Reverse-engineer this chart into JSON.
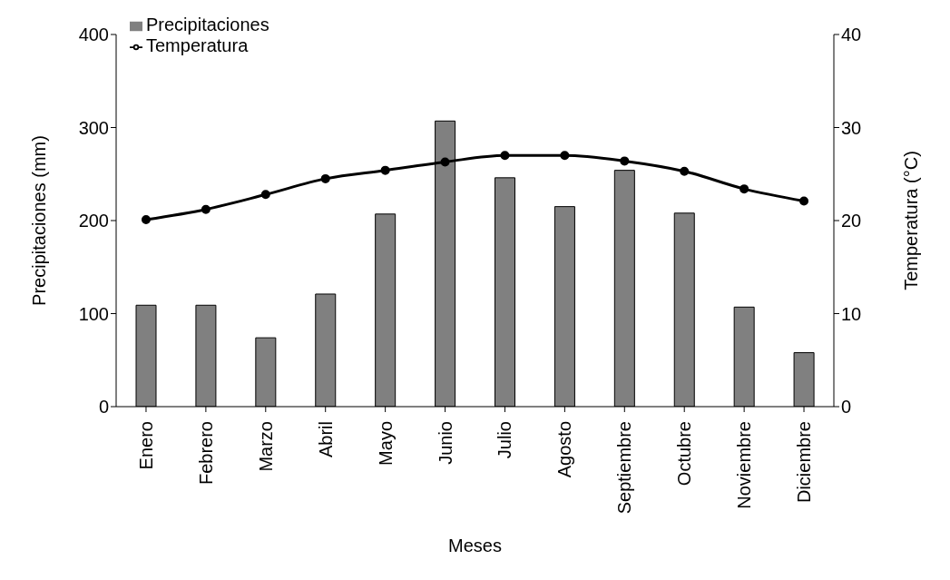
{
  "chart_data": {
    "type": "bar",
    "xlabel": "Meses",
    "ylabel": "Precipitaciones (mm)",
    "y2label": "Temperatura (°C)",
    "categories": [
      "Enero",
      "Febrero",
      "Marzo",
      "Abril",
      "Mayo",
      "Junio",
      "Julio",
      "Agosto",
      "Septiembre",
      "Octubre",
      "Noviembre",
      "Diciembre"
    ],
    "series": [
      {
        "name": "Precipitaciones",
        "color": "#808080",
        "values": [
          109,
          109,
          74,
          121,
          207,
          307,
          246,
          215,
          254,
          208,
          107,
          58
        ]
      },
      {
        "name": "Temperatura",
        "type": "line",
        "axis": "y2",
        "color": "#000000",
        "marker": "circle",
        "values": [
          20.1,
          21.2,
          22.8,
          24.5,
          25.4,
          26.3,
          27.0,
          27.0,
          26.4,
          25.3,
          23.4,
          22.1
        ]
      }
    ],
    "ylim": [
      0,
      400
    ],
    "yticks": [
      0,
      100,
      200,
      300,
      400
    ],
    "y2lim": [
      0,
      40
    ],
    "y2ticks": [
      0,
      10,
      20,
      30,
      40
    ],
    "grid": false,
    "legend": "top left"
  }
}
